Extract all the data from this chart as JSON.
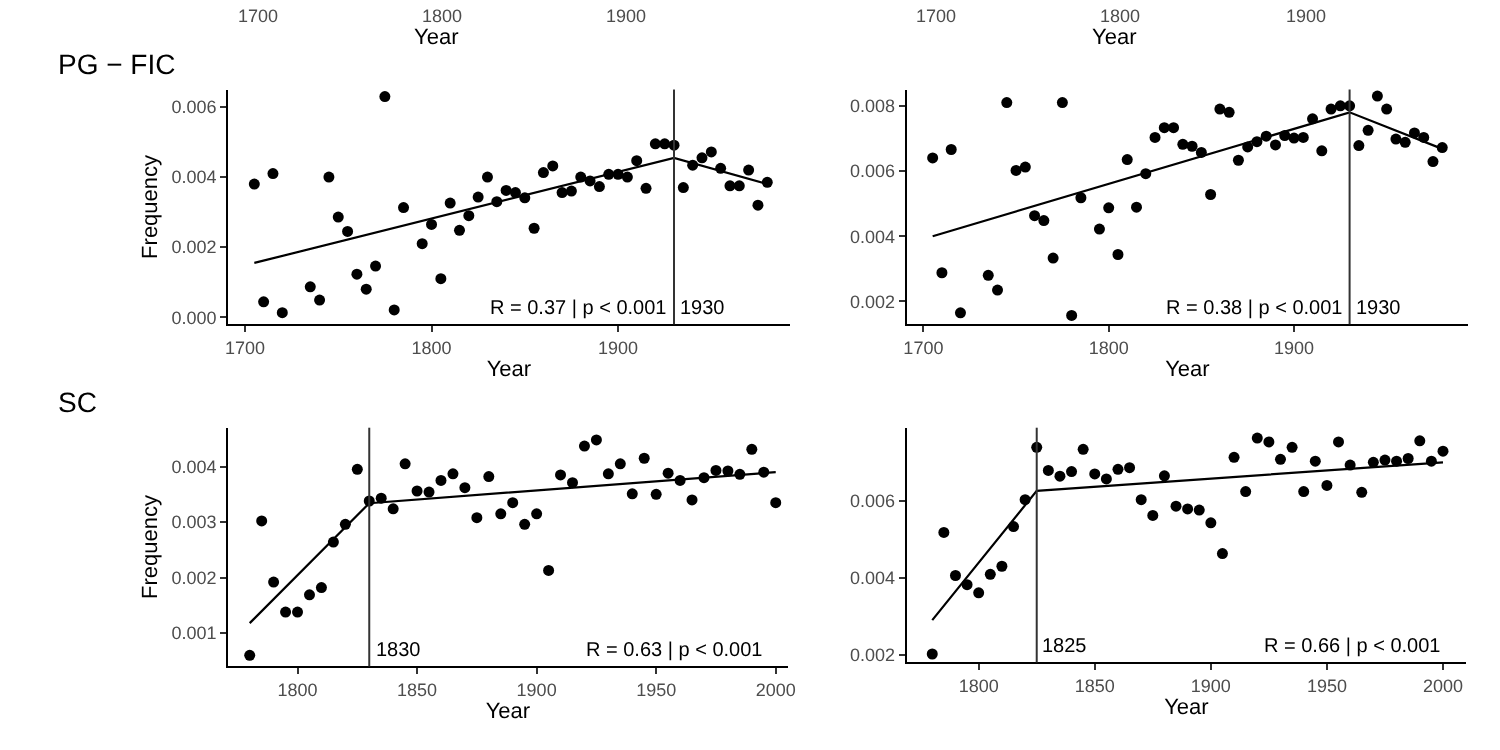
{
  "chart_data": [
    {
      "type": "other",
      "annotations": [
        "1700",
        "1800",
        "1900",
        "Year"
      ]
    },
    {
      "type": "other",
      "annotations": [
        "1700",
        "1800",
        "1900",
        "Year"
      ]
    },
    {
      "type": "scatter",
      "title": "PG − FIC",
      "xlabel": "Year",
      "ylabel": "Frequency",
      "xlim": [
        1691,
        1992
      ],
      "xticks": [
        1700,
        1800,
        1900
      ],
      "ylim": [
        -0.0002,
        0.0065
      ],
      "yticks": [
        {
          "value": 0,
          "label": "0.000"
        },
        {
          "value": 0.002,
          "label": "0.002"
        },
        {
          "value": 0.004,
          "label": "0.004"
        },
        {
          "value": 0.006,
          "label": "0.006"
        }
      ],
      "series": [
        {
          "marker": "circle",
          "color": "#000000",
          "x": [
            1705,
            1710,
            1715,
            1720,
            1735,
            1740,
            1745,
            1750,
            1755,
            1760,
            1765,
            1770,
            1775,
            1780,
            1785,
            1795,
            1800,
            1805,
            1810,
            1815,
            1820,
            1825,
            1830,
            1835,
            1840,
            1845,
            1850,
            1855,
            1860,
            1865,
            1870,
            1875,
            1880,
            1885,
            1890,
            1895,
            1900,
            1905,
            1910,
            1915,
            1920,
            1925,
            1930,
            1935,
            1940,
            1945,
            1950,
            1955,
            1960,
            1965,
            1970,
            1975,
            1980
          ],
          "values": [
            0.0038,
            0.00044,
            0.0041,
            0.00013,
            0.00087,
            0.00049,
            0.004,
            0.00286,
            0.00245,
            0.00123,
            0.0008,
            0.00146,
            0.0063,
            0.00021,
            0.00313,
            0.0021,
            0.00265,
            0.0011,
            0.00326,
            0.00248,
            0.0029,
            0.00343,
            0.004,
            0.0033,
            0.00362,
            0.00356,
            0.00341,
            0.00254,
            0.00413,
            0.00432,
            0.00356,
            0.0036,
            0.004,
            0.00389,
            0.00373,
            0.00408,
            0.00408,
            0.004,
            0.00447,
            0.00368,
            0.00495,
            0.00495,
            0.00491,
            0.0037,
            0.00434,
            0.00455,
            0.00472,
            0.00425,
            0.00375,
            0.00375,
            0.0042,
            0.0032,
            0.00385
          ]
        },
        {
          "type": "line",
          "color": "#000000",
          "x": [
            1705,
            1930,
            1980
          ],
          "values": [
            0.00155,
            0.00455,
            0.0038
          ]
        }
      ],
      "ref_lines": [
        {
          "axis": "x",
          "value": 1930,
          "label": "1930",
          "color": "#333333"
        }
      ],
      "annotations": [
        "R = 0.37 | p < 0.001"
      ]
    },
    {
      "type": "scatter",
      "xlabel": "Year",
      "xlim": [
        1691,
        1994
      ],
      "xticks": [
        1700,
        1800,
        1900
      ],
      "ylim": [
        0.0013,
        0.0085
      ],
      "yticks": [
        {
          "value": 0.002,
          "label": "0.002"
        },
        {
          "value": 0.004,
          "label": "0.004"
        },
        {
          "value": 0.006,
          "label": "0.006"
        },
        {
          "value": 0.008,
          "label": "0.008"
        }
      ],
      "series": [
        {
          "marker": "circle",
          "color": "#000000",
          "x": [
            1705,
            1710,
            1715,
            1720,
            1735,
            1740,
            1745,
            1750,
            1755,
            1760,
            1765,
            1770,
            1775,
            1780,
            1785,
            1795,
            1800,
            1805,
            1810,
            1815,
            1820,
            1825,
            1830,
            1835,
            1840,
            1845,
            1850,
            1855,
            1860,
            1865,
            1870,
            1875,
            1880,
            1885,
            1890,
            1895,
            1900,
            1905,
            1910,
            1915,
            1920,
            1925,
            1930,
            1935,
            1940,
            1945,
            1950,
            1955,
            1960,
            1965,
            1970,
            1975,
            1980
          ],
          "values": [
            0.0064,
            0.00288,
            0.00666,
            0.00165,
            0.0028,
            0.00235,
            0.0081,
            0.00602,
            0.00612,
            0.00463,
            0.00448,
            0.00333,
            0.0081,
            0.00157,
            0.00518,
            0.00422,
            0.00487,
            0.00344,
            0.00635,
            0.00489,
            0.00592,
            0.00703,
            0.00733,
            0.00733,
            0.00682,
            0.00676,
            0.00657,
            0.00528,
            0.0079,
            0.0078,
            0.00633,
            0.00674,
            0.0069,
            0.00707,
            0.0068,
            0.00709,
            0.00701,
            0.00703,
            0.0076,
            0.00662,
            0.0079,
            0.008,
            0.008,
            0.00678,
            0.00725,
            0.0083,
            0.0079,
            0.00698,
            0.00688,
            0.00717,
            0.00703,
            0.00629,
            0.00672
          ]
        },
        {
          "type": "line",
          "color": "#000000",
          "x": [
            1705,
            1930,
            1980
          ],
          "values": [
            0.004,
            0.0078,
            0.00668
          ]
        }
      ],
      "ref_lines": [
        {
          "axis": "x",
          "value": 1930,
          "label": "1930",
          "color": "#333333"
        }
      ],
      "annotations": [
        "R = 0.38 | p < 0.001"
      ]
    },
    {
      "type": "scatter",
      "title": "SC",
      "xlabel": "Year",
      "ylabel": "Frequency",
      "xlim": [
        1771,
        2005
      ],
      "xticks": [
        1800,
        1850,
        1900,
        1950,
        2000
      ],
      "ylim": [
        0.0004,
        0.0047
      ],
      "yticks": [
        {
          "value": 0.001,
          "label": "0.001"
        },
        {
          "value": 0.002,
          "label": "0.002"
        },
        {
          "value": 0.003,
          "label": "0.003"
        },
        {
          "value": 0.004,
          "label": "0.004"
        }
      ],
      "series": [
        {
          "marker": "circle",
          "color": "#000000",
          "x": [
            1780,
            1785,
            1790,
            1795,
            1800,
            1805,
            1810,
            1815,
            1820,
            1825,
            1830,
            1835,
            1840,
            1845,
            1850,
            1855,
            1860,
            1865,
            1870,
            1875,
            1880,
            1885,
            1890,
            1895,
            1900,
            1905,
            1910,
            1915,
            1920,
            1925,
            1930,
            1935,
            1940,
            1945,
            1950,
            1955,
            1960,
            1965,
            1970,
            1975,
            1980,
            1985,
            1990,
            1995,
            2000
          ],
          "values": [
            0.0006,
            0.00302,
            0.00192,
            0.00138,
            0.00138,
            0.00169,
            0.00182,
            0.00264,
            0.00296,
            0.00395,
            0.00338,
            0.00343,
            0.00324,
            0.00405,
            0.00356,
            0.00354,
            0.00375,
            0.00387,
            0.00362,
            0.00308,
            0.00382,
            0.00315,
            0.00335,
            0.00296,
            0.00315,
            0.00213,
            0.00385,
            0.00371,
            0.00437,
            0.00448,
            0.00387,
            0.00405,
            0.00351,
            0.00415,
            0.0035,
            0.00388,
            0.00375,
            0.0034,
            0.0038,
            0.00393,
            0.00392,
            0.00386,
            0.00431,
            0.0039,
            0.00335
          ]
        },
        {
          "type": "line",
          "color": "#000000",
          "x": [
            1780,
            1830,
            2000
          ],
          "values": [
            0.00118,
            0.00334,
            0.0039
          ]
        }
      ],
      "ref_lines": [
        {
          "axis": "x",
          "value": 1830,
          "label": "1830",
          "color": "#333333"
        }
      ],
      "annotations": [
        "R = 0.63 | p < 0.001"
      ]
    },
    {
      "type": "scatter",
      "xlabel": "Year",
      "xlim": [
        1769,
        2010
      ],
      "xticks": [
        1800,
        1850,
        1900,
        1950,
        2000
      ],
      "ylim": [
        0.0018,
        0.0079
      ],
      "yticks": [
        {
          "value": 0.002,
          "label": "0.002"
        },
        {
          "value": 0.004,
          "label": "0.004"
        },
        {
          "value": 0.006,
          "label": "0.006"
        }
      ],
      "series": [
        {
          "marker": "circle",
          "color": "#000000",
          "x": [
            1780,
            1785,
            1790,
            1795,
            1800,
            1805,
            1810,
            1815,
            1820,
            1825,
            1830,
            1835,
            1840,
            1845,
            1850,
            1855,
            1860,
            1865,
            1870,
            1875,
            1880,
            1885,
            1890,
            1895,
            1900,
            1905,
            1910,
            1915,
            1920,
            1925,
            1930,
            1935,
            1940,
            1945,
            1950,
            1955,
            1960,
            1965,
            1970,
            1975,
            1980,
            1985,
            1990,
            1995,
            2000
          ],
          "values": [
            0.00202,
            0.00518,
            0.00406,
            0.00382,
            0.00361,
            0.00409,
            0.0043,
            0.00533,
            0.00603,
            0.00739,
            0.00679,
            0.00664,
            0.00676,
            0.00734,
            0.0067,
            0.00657,
            0.00682,
            0.00686,
            0.00603,
            0.00562,
            0.00665,
            0.00586,
            0.00579,
            0.00576,
            0.00543,
            0.00463,
            0.00713,
            0.00624,
            0.00763,
            0.00753,
            0.00708,
            0.00739,
            0.00624,
            0.00703,
            0.0064,
            0.00753,
            0.00693,
            0.00622,
            0.007,
            0.00706,
            0.00703,
            0.0071,
            0.00756,
            0.00703,
            0.00729
          ]
        },
        {
          "type": "line",
          "color": "#000000",
          "x": [
            1780,
            1825,
            2000
          ],
          "values": [
            0.0029,
            0.00626,
            0.007
          ]
        }
      ],
      "ref_lines": [
        {
          "axis": "x",
          "value": 1825,
          "label": "1825",
          "color": "#333333"
        }
      ],
      "annotations": [
        "R = 0.66 | p < 0.001"
      ]
    }
  ]
}
